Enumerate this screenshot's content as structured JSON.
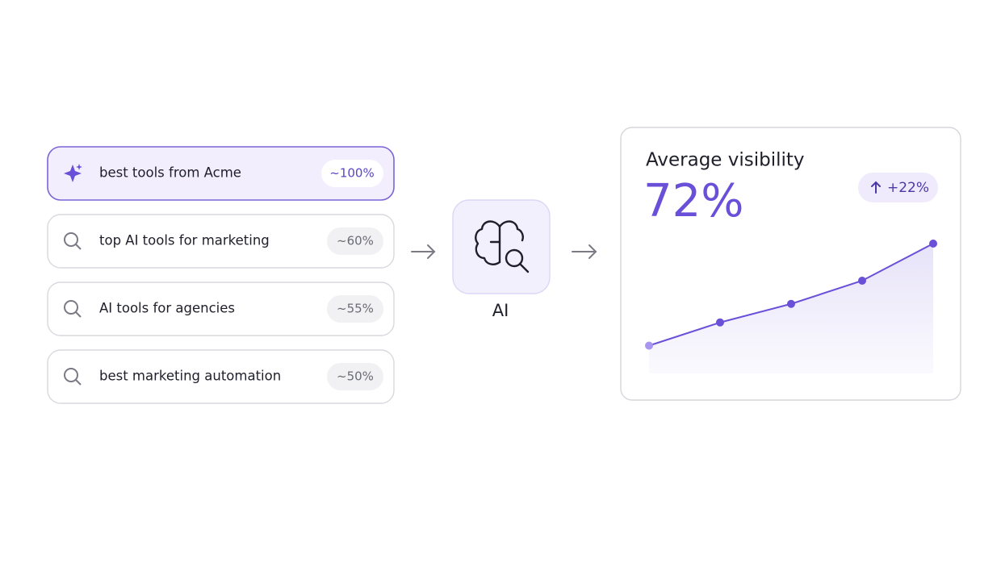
{
  "queries": [
    {
      "text": "best tools from Acme",
      "share": "~100%"
    },
    {
      "text": "top AI tools for marketing",
      "share": "~60%"
    },
    {
      "text": "AI tools for agencies",
      "share": "~55%"
    },
    {
      "text": "best marketing automation",
      "share": "~50%"
    }
  ],
  "ai_label": "AI",
  "card": {
    "title": "Average visibility",
    "value": "72%",
    "change": "+22%"
  },
  "chart_data": {
    "type": "line",
    "categories": [
      null,
      null,
      null,
      null,
      null
    ],
    "values": [
      50,
      55,
      59,
      64,
      72
    ],
    "ylim": [
      44,
      72
    ],
    "color": "#6a4fd8",
    "first_point_color": "#a895f2",
    "area": true
  }
}
